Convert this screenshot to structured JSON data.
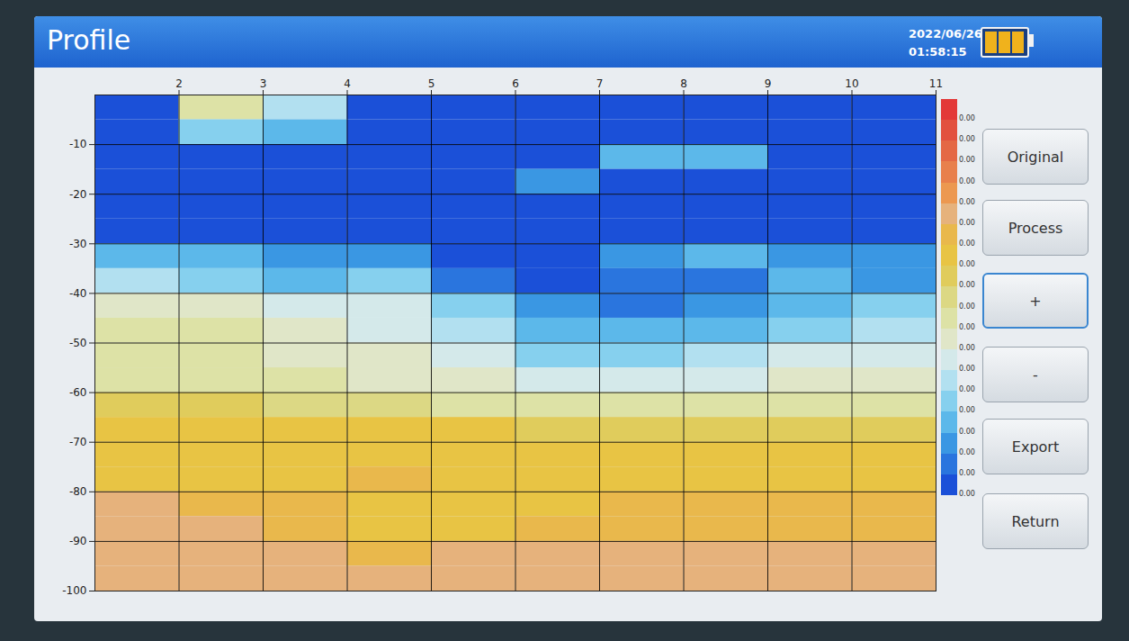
{
  "screen": {
    "title": "Profile",
    "date": "2022/06/26",
    "time": "01:58:15",
    "buttons": [
      "Original",
      "Process",
      "+",
      "-",
      "Export",
      "Return"
    ]
  },
  "chart_data": {
    "type": "heatmap",
    "x": [
      1,
      2,
      3,
      4,
      5,
      6,
      7,
      8,
      9,
      10,
      11
    ],
    "y": [
      0,
      -5,
      -10,
      -15,
      -20,
      -25,
      -30,
      -35,
      -40,
      -45,
      -50,
      -55,
      -60,
      -65,
      -70,
      -75,
      -80,
      -85,
      -90,
      -95,
      -100
    ],
    "cells": [
      [
        0,
        8,
        5,
        0,
        0,
        0,
        0,
        0,
        0,
        0
      ],
      [
        0,
        4,
        3,
        0,
        0,
        0,
        0,
        0,
        0,
        0
      ],
      [
        0,
        0,
        0,
        0,
        0,
        0,
        3,
        3,
        0,
        0
      ],
      [
        0,
        0,
        0,
        0,
        0,
        2,
        0,
        0,
        0,
        0
      ],
      [
        0,
        0,
        0,
        0,
        0,
        0,
        0,
        0,
        0,
        0
      ],
      [
        0,
        0,
        0,
        0,
        0,
        0,
        0,
        0,
        0,
        0
      ],
      [
        3,
        3,
        2,
        2,
        0,
        0,
        2,
        3,
        2,
        2
      ],
      [
        5,
        4,
        3,
        4,
        1,
        0,
        1,
        1,
        3,
        2
      ],
      [
        7,
        7,
        6,
        6,
        4,
        2,
        1,
        2,
        3,
        4
      ],
      [
        8,
        8,
        7,
        6,
        5,
        3,
        3,
        3,
        4,
        5
      ],
      [
        8,
        8,
        7,
        7,
        6,
        4,
        4,
        5,
        6,
        6
      ],
      [
        8,
        8,
        8,
        7,
        7,
        6,
        6,
        6,
        7,
        7
      ],
      [
        10,
        10,
        9,
        9,
        8,
        8,
        8,
        8,
        8,
        8
      ],
      [
        11,
        11,
        11,
        11,
        11,
        10,
        10,
        10,
        10,
        10
      ],
      [
        11,
        11,
        11,
        11,
        11,
        11,
        11,
        11,
        11,
        11
      ],
      [
        11,
        11,
        11,
        12,
        11,
        11,
        11,
        11,
        11,
        11
      ],
      [
        13,
        12,
        12,
        11,
        11,
        11,
        12,
        12,
        12,
        12
      ],
      [
        13,
        13,
        12,
        11,
        11,
        12,
        12,
        12,
        12,
        12
      ],
      [
        13,
        13,
        13,
        12,
        13,
        13,
        13,
        13,
        13,
        13
      ],
      [
        13,
        13,
        13,
        13,
        13,
        13,
        13,
        13,
        13,
        13
      ]
    ],
    "xlim": [
      1,
      11
    ],
    "xticks": [
      2,
      3,
      4,
      5,
      6,
      7,
      8,
      9,
      10,
      11
    ],
    "ylim": [
      -100,
      0
    ],
    "yticks": [
      -10,
      -20,
      -30,
      -40,
      -50,
      -60,
      -70,
      -80,
      -90,
      -100
    ],
    "grid": true,
    "colorbar": {
      "range": [
        0,
        18
      ],
      "colors": [
        "#1b50d8",
        "#2a75de",
        "#3a97e3",
        "#5cb8ea",
        "#86d0ee",
        "#b2e0f0",
        "#d4e9ea",
        "#e0e6c8",
        "#dde2a6",
        "#dcd884",
        "#e0cc5c",
        "#e8c444",
        "#e9b84c",
        "#e6b27c",
        "#ec9850",
        "#e8804c",
        "#e46845",
        "#e2503e",
        "#e33838"
      ],
      "labels": [
        "0.00",
        "0.00",
        "0.00",
        "0.00",
        "0.00",
        "0.00",
        "0.00",
        "0.00",
        "0.00",
        "0.00",
        "0.00",
        "0.00",
        "0.00",
        "0.00",
        "0.00",
        "0.00",
        "0.00",
        "0.00",
        "0.00"
      ]
    }
  }
}
